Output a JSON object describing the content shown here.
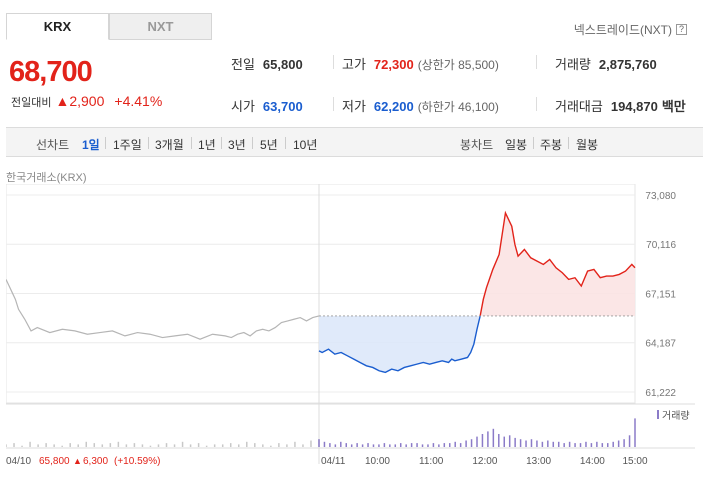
{
  "tabs": [
    {
      "label": "KRX",
      "active": true
    },
    {
      "label": "NXT",
      "active": false
    }
  ],
  "nxt_link": "넥스트레이드(NXT)",
  "nxt_help": "?",
  "quote": {
    "price": "68,700",
    "change_label": "전일대비",
    "change_arrow": "▲",
    "change_value": "2,900",
    "change_pct": "+4.41%"
  },
  "stats": {
    "prev_close": {
      "label": "전일",
      "value": "65,800"
    },
    "high": {
      "label": "고가",
      "value": "72,300",
      "note": "(상한가 85,500)"
    },
    "volume": {
      "label": "거래량",
      "value": "2,875,760"
    },
    "open": {
      "label": "시가",
      "value": "63,700"
    },
    "low": {
      "label": "저가",
      "value": "62,200",
      "note": "(하한가 46,100)"
    },
    "turnover": {
      "label": "거래대금",
      "value": "194,870",
      "unit": "백만"
    }
  },
  "period_bar": {
    "line_label": "선차트",
    "line_items": [
      "1일",
      "1주일",
      "3개월",
      "1년",
      "3년",
      "5년",
      "10년"
    ],
    "active": "1일",
    "candle_label": "봉차트",
    "candle_items": [
      "일봉",
      "주봉",
      "월봉"
    ]
  },
  "market_label": "한국거래소(KRX)",
  "colors": {
    "up": "#e2231a",
    "down": "#1a5dcf",
    "prev_day_line": "#b5b5b5",
    "up_fill": "#fbe3e3",
    "down_fill": "#dde8fa",
    "volume": "#8b7bc8"
  },
  "chart_data": {
    "type": "line",
    "title": "",
    "ylim": [
      61222,
      73080
    ],
    "y_ticks": [
      "73,080",
      "70,116",
      "67,151",
      "64,187",
      "61,222"
    ],
    "y_tick_values": [
      73080,
      70116,
      67151,
      64187,
      61222
    ],
    "baseline": 65800,
    "x_tick_labels": [
      "04/11",
      "10:00",
      "11:00",
      "12:00",
      "13:00",
      "14:00",
      "15:00"
    ],
    "prev_day_label": "04/10",
    "prev_day_close": "65,800",
    "prev_day_change_arrow": "▲",
    "prev_day_change": "6,300",
    "prev_day_change_pct": "(+10.59%)",
    "volume_legend": "거래량",
    "series": [
      {
        "x": [
          0,
          1,
          2,
          3,
          4,
          6,
          8,
          10,
          14,
          18,
          22,
          26,
          30,
          34,
          38,
          42,
          46,
          50,
          54,
          58,
          62,
          66,
          70,
          72,
          74,
          76,
          78,
          80,
          82,
          84,
          86,
          88,
          90,
          92,
          94,
          96,
          98,
          100
        ],
        "values": [
          68000,
          67600,
          67200,
          66800,
          66200,
          65600,
          64900,
          65100,
          64800,
          65000,
          64900,
          64700,
          64800,
          64900,
          64600,
          64800,
          64700,
          64500,
          64600,
          64700,
          64400,
          64700,
          64600,
          64500,
          64700,
          64800,
          64600,
          64900,
          65000,
          64900,
          65100,
          65400,
          65500,
          65600,
          65700,
          65500,
          65700,
          65800
        ]
      },
      {
        "x": [
          0,
          1,
          3,
          5,
          7,
          9,
          11,
          13,
          15,
          17,
          19,
          21,
          23,
          25,
          27,
          29,
          31,
          33,
          35,
          37,
          39,
          41,
          42,
          43,
          45,
          47,
          48,
          49,
          50,
          51,
          52,
          53,
          55,
          57,
          59,
          61,
          62,
          63,
          65,
          67,
          69,
          71,
          73,
          75,
          77,
          79,
          81,
          83,
          85,
          87,
          89,
          91,
          93,
          95,
          97,
          99,
          100
        ],
        "values": [
          63700,
          63600,
          63800,
          63500,
          63600,
          63400,
          63200,
          63000,
          62800,
          62700,
          62500,
          62400,
          62600,
          62500,
          62700,
          62800,
          62900,
          63000,
          62900,
          63000,
          63100,
          63000,
          63200,
          63100,
          63200,
          63300,
          63600,
          64100,
          65000,
          65800,
          66800,
          67500,
          68600,
          69500,
          72000,
          71200,
          70100,
          69400,
          69800,
          69300,
          69100,
          68900,
          69200,
          68700,
          68400,
          68000,
          68100,
          67600,
          68500,
          68600,
          68100,
          68200,
          68200,
          68300,
          68500,
          68900,
          68700
        ]
      }
    ],
    "volume": {
      "prev_day": [
        2,
        3,
        1,
        4,
        2,
        3,
        2,
        1,
        3,
        2,
        4,
        3,
        2,
        3,
        4,
        2,
        3,
        2,
        1,
        2,
        3,
        2,
        4,
        2,
        3,
        1,
        2,
        2,
        3,
        2,
        4,
        3,
        2,
        1,
        3,
        2,
        4,
        2,
        5,
        6
      ],
      "today": [
        6,
        4,
        3,
        2,
        4,
        3,
        2,
        3,
        2,
        3,
        2,
        2,
        3,
        2,
        2,
        3,
        2,
        3,
        3,
        2,
        2,
        3,
        2,
        3,
        3,
        4,
        3,
        5,
        6,
        8,
        10,
        12,
        14,
        10,
        8,
        9,
        7,
        6,
        5,
        6,
        5,
        4,
        5,
        4,
        4,
        3,
        4,
        3,
        3,
        4,
        3,
        4,
        3,
        3,
        4,
        5,
        6,
        9,
        22
      ]
    }
  }
}
